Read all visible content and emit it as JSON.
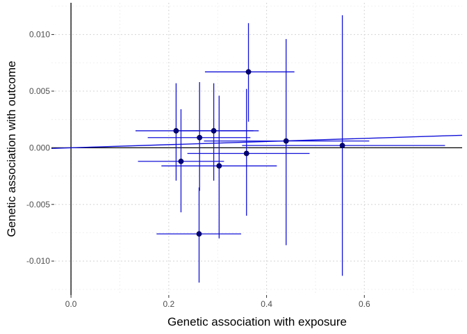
{
  "chart_data": {
    "type": "scatter",
    "xlabel": "Genetic association with exposure",
    "ylabel": "Genetic association with outcome",
    "xlim": [
      -0.04,
      0.8
    ],
    "ylim": [
      -0.013,
      0.0128
    ],
    "x_ticks": [
      0.0,
      0.2,
      0.4,
      0.6
    ],
    "x_tick_labels": [
      "0.0",
      "0.2",
      "0.4",
      "0.6"
    ],
    "y_ticks": [
      -0.01,
      -0.005,
      0.0,
      0.005,
      0.01
    ],
    "y_tick_labels": [
      "-0.010",
      "-0.005",
      "0.000",
      "0.005",
      "0.010"
    ],
    "grid": true,
    "grid_style": "dotted",
    "colors": {
      "error_bars": "#1010d8",
      "points": "#000080",
      "fit_line": "#1010d8",
      "axes": "#000000",
      "grid": "#d9d9d9"
    },
    "points": [
      {
        "x": 0.363,
        "y": 0.0067,
        "x_lo": 0.274,
        "x_hi": 0.457,
        "y_lo": 0.0023,
        "y_hi": 0.011
      },
      {
        "x": 0.215,
        "y": 0.0015,
        "x_lo": 0.132,
        "x_hi": 0.384,
        "y_lo": -0.0029,
        "y_hi": 0.0057
      },
      {
        "x": 0.292,
        "y": 0.0015,
        "x_lo": 0.21,
        "x_hi": 0.373,
        "y_lo": -0.0029,
        "y_hi": 0.0057
      },
      {
        "x": 0.263,
        "y": 0.0009,
        "x_lo": 0.157,
        "x_hi": 0.367,
        "y_lo": -0.0038,
        "y_hi": 0.0058
      },
      {
        "x": 0.44,
        "y": 0.0006,
        "x_lo": 0.272,
        "x_hi": 0.61,
        "y_lo": -0.0086,
        "y_hi": 0.0096
      },
      {
        "x": 0.555,
        "y": 0.0002,
        "x_lo": 0.35,
        "x_hi": 0.765,
        "y_lo": -0.0113,
        "y_hi": 0.0117
      },
      {
        "x": 0.359,
        "y": -0.0005,
        "x_lo": 0.238,
        "x_hi": 0.488,
        "y_lo": -0.006,
        "y_hi": 0.0052
      },
      {
        "x": 0.225,
        "y": -0.0012,
        "x_lo": 0.137,
        "x_hi": 0.313,
        "y_lo": -0.0057,
        "y_hi": 0.0034
      },
      {
        "x": 0.303,
        "y": -0.0016,
        "x_lo": 0.185,
        "x_hi": 0.421,
        "y_lo": -0.008,
        "y_hi": 0.0046
      },
      {
        "x": 0.262,
        "y": -0.0076,
        "x_lo": 0.175,
        "x_hi": 0.348,
        "y_lo": -0.0119,
        "y_hi": -0.0035
      }
    ],
    "fit_line": {
      "intercept": 0.0,
      "slope": 0.00138
    },
    "reference_lines": {
      "x": 0.0,
      "y": 0.0
    }
  }
}
